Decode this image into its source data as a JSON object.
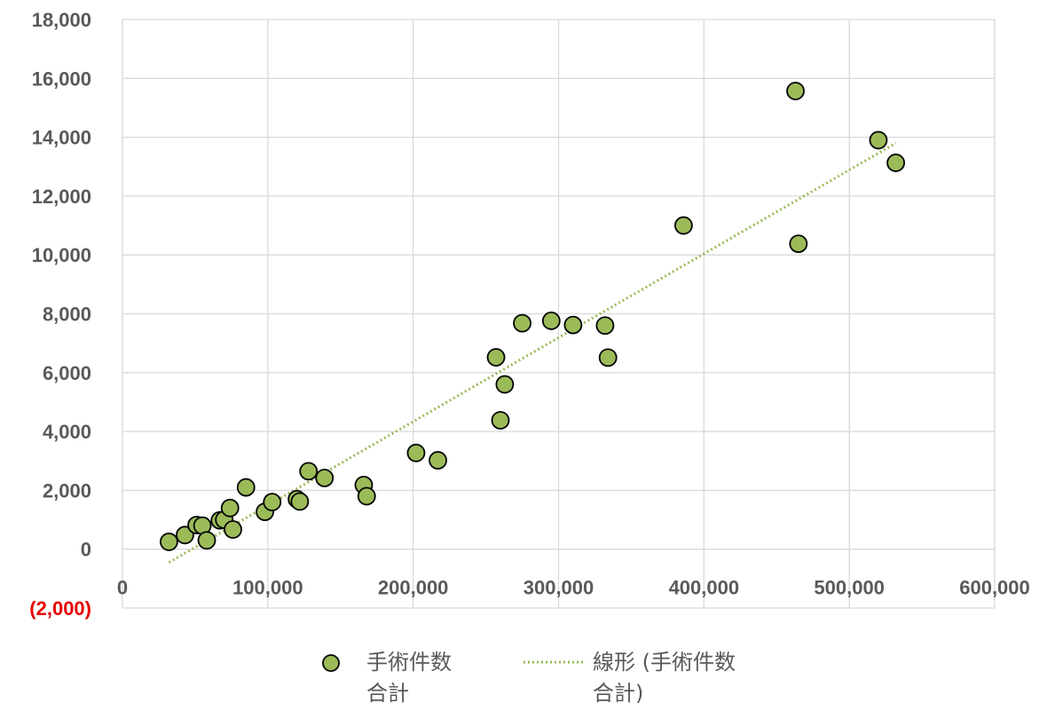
{
  "chart_data": {
    "type": "scatter",
    "title": "",
    "xlabel": "",
    "ylabel": "",
    "xlim": [
      0,
      600000
    ],
    "ylim": [
      -2000,
      18000
    ],
    "grid": true,
    "legend_position": "bottom",
    "x_ticks": [
      {
        "value": 0,
        "label": "0"
      },
      {
        "value": 100000,
        "label": "100,000"
      },
      {
        "value": 200000,
        "label": "200,000"
      },
      {
        "value": 300000,
        "label": "300,000"
      },
      {
        "value": 400000,
        "label": "400,000"
      },
      {
        "value": 500000,
        "label": "500,000"
      },
      {
        "value": 600000,
        "label": "600,000"
      }
    ],
    "y_ticks": [
      {
        "value": -2000,
        "label": "(2,000)",
        "negative": true
      },
      {
        "value": 0,
        "label": "0"
      },
      {
        "value": 2000,
        "label": "2,000"
      },
      {
        "value": 4000,
        "label": "4,000"
      },
      {
        "value": 6000,
        "label": "6,000"
      },
      {
        "value": 8000,
        "label": "8,000"
      },
      {
        "value": 10000,
        "label": "10,000"
      },
      {
        "value": 12000,
        "label": "12,000"
      },
      {
        "value": 14000,
        "label": "14,000"
      },
      {
        "value": 16000,
        "label": "16,000"
      },
      {
        "value": 18000,
        "label": "18,000"
      }
    ],
    "series": [
      {
        "name": "手術件数合計",
        "color": "#9bbb59",
        "points": [
          {
            "x": 32000,
            "y": 250
          },
          {
            "x": 43000,
            "y": 480
          },
          {
            "x": 51000,
            "y": 820
          },
          {
            "x": 55000,
            "y": 800
          },
          {
            "x": 58000,
            "y": 300
          },
          {
            "x": 67000,
            "y": 980
          },
          {
            "x": 70000,
            "y": 1000
          },
          {
            "x": 74000,
            "y": 1400
          },
          {
            "x": 76000,
            "y": 670
          },
          {
            "x": 85000,
            "y": 2100
          },
          {
            "x": 98000,
            "y": 1270
          },
          {
            "x": 103000,
            "y": 1600
          },
          {
            "x": 120000,
            "y": 1700
          },
          {
            "x": 122000,
            "y": 1620
          },
          {
            "x": 128000,
            "y": 2650
          },
          {
            "x": 139000,
            "y": 2420
          },
          {
            "x": 166000,
            "y": 2180
          },
          {
            "x": 168000,
            "y": 1800
          },
          {
            "x": 202000,
            "y": 3270
          },
          {
            "x": 217000,
            "y": 3020
          },
          {
            "x": 257000,
            "y": 6520
          },
          {
            "x": 260000,
            "y": 4380
          },
          {
            "x": 263000,
            "y": 5600
          },
          {
            "x": 275000,
            "y": 7680
          },
          {
            "x": 295000,
            "y": 7760
          },
          {
            "x": 310000,
            "y": 7620
          },
          {
            "x": 332000,
            "y": 7600
          },
          {
            "x": 334000,
            "y": 6510
          },
          {
            "x": 386000,
            "y": 11000
          },
          {
            "x": 463000,
            "y": 15570
          },
          {
            "x": 465000,
            "y": 10380
          },
          {
            "x": 520000,
            "y": 13900
          },
          {
            "x": 532000,
            "y": 13130
          }
        ]
      }
    ],
    "trendline": {
      "name": "線形 (手術件数合計)",
      "type": "linear",
      "color": "#9bbb59",
      "from": {
        "x": 32000,
        "y": -450
      },
      "to": {
        "x": 532000,
        "y": 13800
      }
    },
    "legend": [
      {
        "key": "series",
        "line1": "手術件数",
        "line2": "合計"
      },
      {
        "key": "trendline",
        "line1": "線形 (手術件数",
        "line2": "合計)"
      }
    ]
  }
}
